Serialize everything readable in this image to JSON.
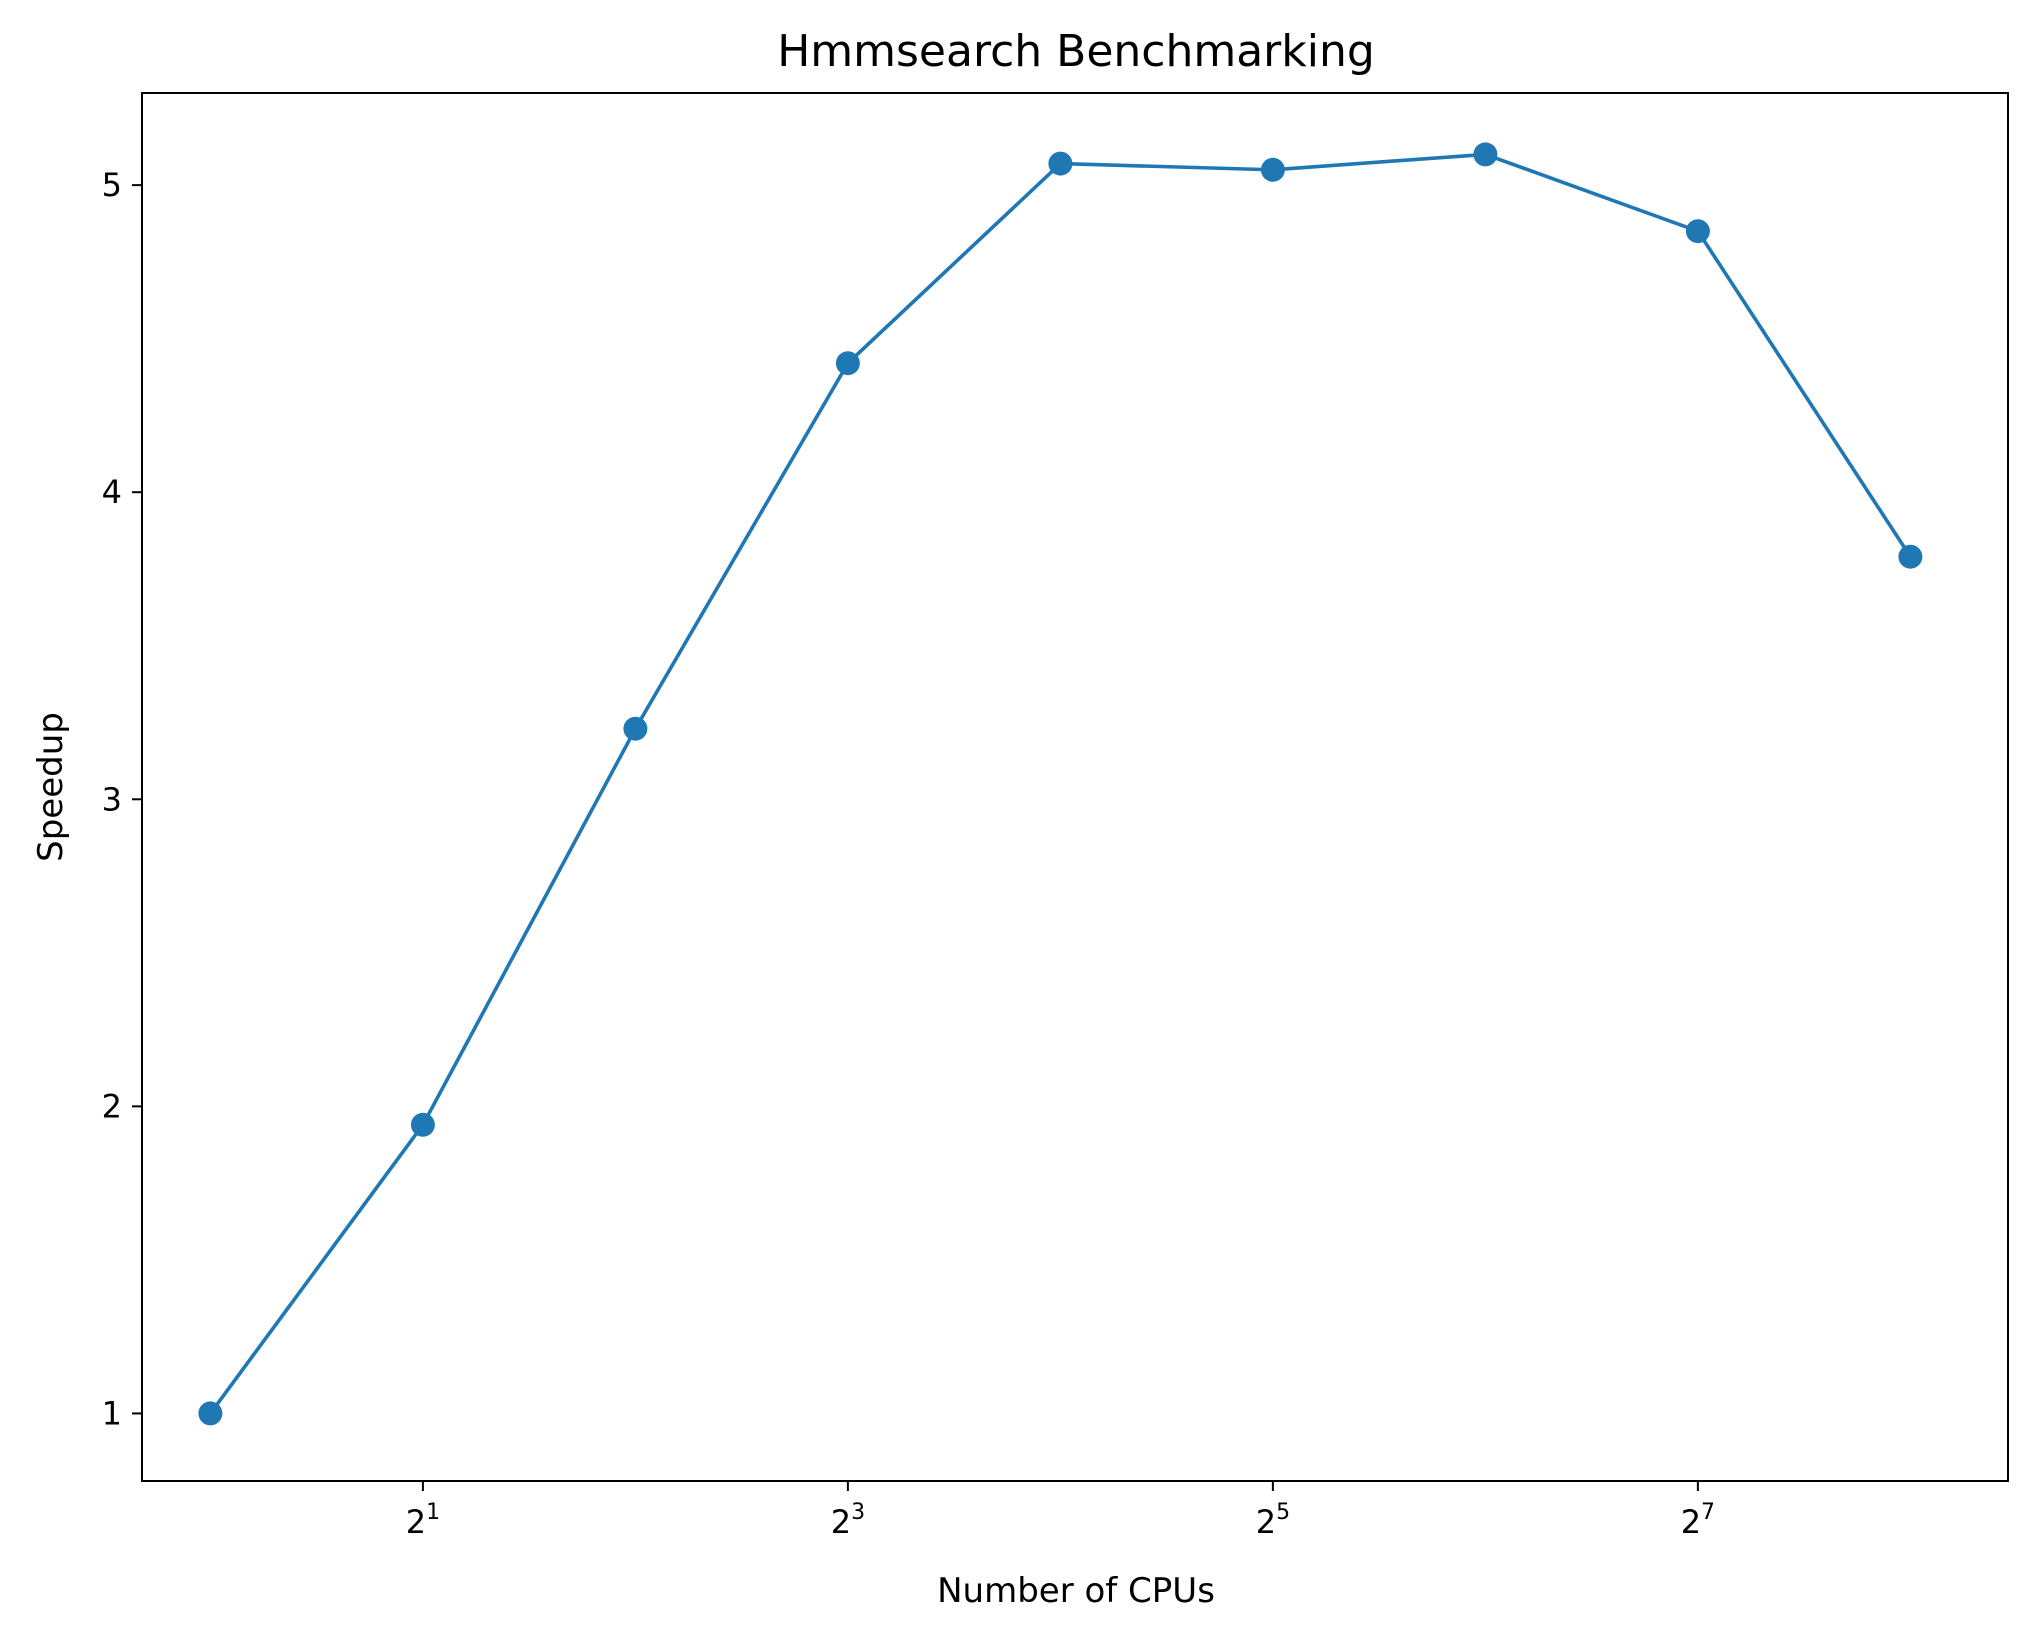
{
  "chart_data": {
    "type": "line",
    "title": "Hmmsearch Benchmarking",
    "xlabel": "Number of CPUs",
    "ylabel": "Speedup",
    "xscale": "log2",
    "x": [
      1,
      2,
      4,
      8,
      16,
      32,
      64,
      128,
      256
    ],
    "series": [
      {
        "values": [
          1.0,
          1.94,
          3.23,
          4.42,
          5.07,
          5.05,
          5.1,
          4.85,
          3.79
        ],
        "color": "#1f77b4",
        "marker": "circle"
      }
    ],
    "xlim": [
      0.8,
      352
    ],
    "ylim": [
      0.78,
      5.3
    ],
    "xticks": [
      {
        "value": 2,
        "base": "2",
        "exp": "1"
      },
      {
        "value": 8,
        "base": "2",
        "exp": "3"
      },
      {
        "value": 32,
        "base": "2",
        "exp": "5"
      },
      {
        "value": 128,
        "base": "2",
        "exp": "7"
      }
    ],
    "yticks": [
      1,
      2,
      3,
      4,
      5
    ],
    "grid": false,
    "legend": "none"
  }
}
